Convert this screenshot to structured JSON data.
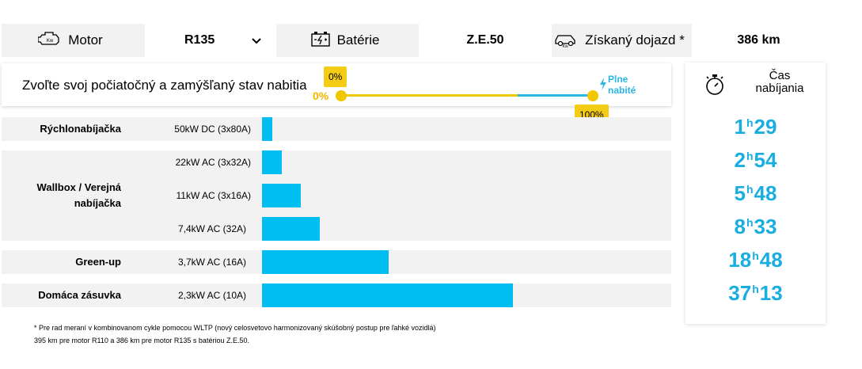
{
  "spec_bar": {
    "motor_label": "Motor",
    "motor_value": "R135",
    "battery_label": "Batérie",
    "battery_value": "Z.E.50",
    "range_label": "Získaný dojazd *",
    "range_value": "386 km"
  },
  "charge_selector": {
    "title": "Zvoľte svoj počiatočný a zamýšľaný stav nabitia",
    "start_tip": "0%",
    "start_label": "0%",
    "end_tip": "100%",
    "full_line1": "Plne",
    "full_line2": "nabité",
    "start_value_pct": 0,
    "end_value_pct": 100
  },
  "charging_table": {
    "rows": [
      {
        "category": "Rýchlonabíjačka",
        "spec": "50kW DC (3x80A)",
        "hours": "1",
        "minutes": "29"
      },
      {
        "category": "",
        "spec": "22kW AC (3x32A)",
        "hours": "2",
        "minutes": "54"
      },
      {
        "category": "",
        "spec": "11kW AC (3x16A)",
        "hours": "5",
        "minutes": "48"
      },
      {
        "category": "",
        "spec": "7,4kW AC (32A)",
        "hours": "8",
        "minutes": "33"
      },
      {
        "category": "Green-up",
        "spec": "3,7kW AC (16A)",
        "hours": "18",
        "minutes": "48"
      },
      {
        "category": "Domáca zásuvka",
        "spec": "2,3kW AC (10A)",
        "hours": "37",
        "minutes": "13"
      }
    ],
    "wallbox_line1": "Wallbox / Verejná",
    "wallbox_line2": "nabíjačka",
    "hour_unit": "h"
  },
  "time_panel": {
    "title_line1": "Čas",
    "title_line2": "nabíjania"
  },
  "footnote": {
    "line1": "* Pre rad meraní v kombinovanom cykle pomocou WLTP (nový celosvetovo harmonizovaný skúšobný postup pre ľahké vozidlá)",
    "line2": "395 km pre motor R110 a 386 km pre motor R135 s batériou Z.E.50."
  },
  "colors": {
    "accent_yellow": "#f0c800",
    "accent_blue": "#00bdf2",
    "time_blue": "#1aaee0"
  }
}
